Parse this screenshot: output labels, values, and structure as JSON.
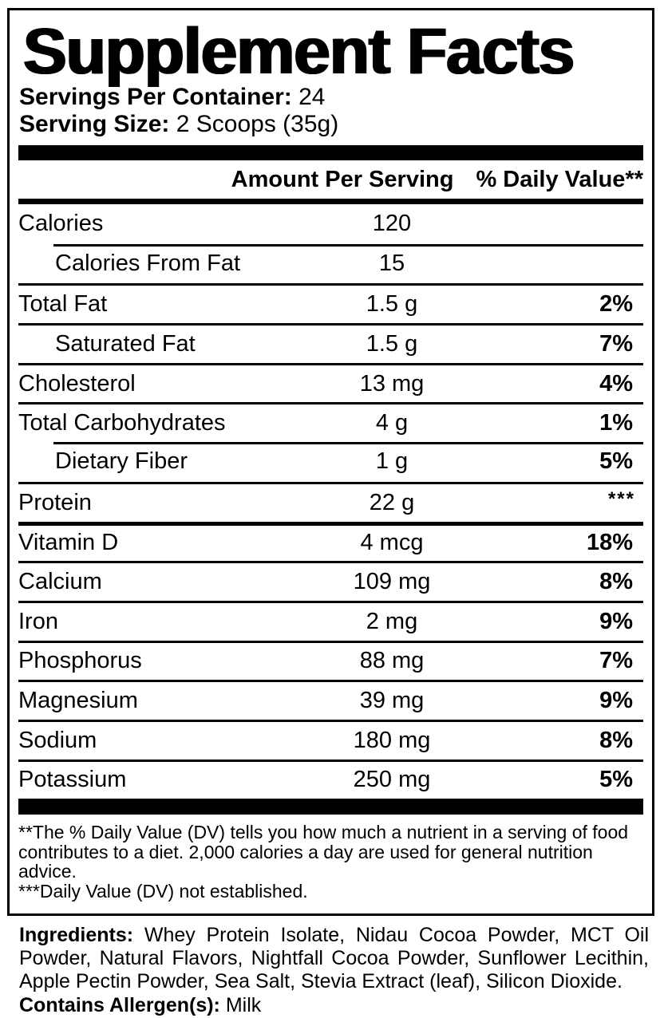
{
  "title": "Supplement Facts",
  "serving_info": {
    "servings_per_container_label": "Servings Per Container:",
    "servings_per_container_value": "24",
    "serving_size_label": "Serving Size:",
    "serving_size_value": "2 Scoops (35g)"
  },
  "table": {
    "header": {
      "amount": "Amount Per Serving",
      "daily_value": "% Daily Value**"
    },
    "rows": [
      {
        "name": "Calories",
        "amount": "120",
        "dv": ""
      },
      {
        "name": "Calories From Fat",
        "amount": "15",
        "dv": ""
      },
      {
        "name": "Total Fat",
        "amount": "1.5 g",
        "dv": "2%"
      },
      {
        "name": "Saturated Fat",
        "amount": "1.5 g",
        "dv": "7%"
      },
      {
        "name": "Cholesterol",
        "amount": "13 mg",
        "dv": "4%"
      },
      {
        "name": "Total Carbohydrates",
        "amount": "4 g",
        "dv": "1%"
      },
      {
        "name": "Dietary Fiber",
        "amount": "1 g",
        "dv": "5%"
      },
      {
        "name": "Protein",
        "amount": "22 g",
        "dv": "***"
      },
      {
        "name": "Vitamin D",
        "amount": "4 mcg",
        "dv": "18%"
      },
      {
        "name": "Calcium",
        "amount": "109 mg",
        "dv": "8%"
      },
      {
        "name": "Iron",
        "amount": "2 mg",
        "dv": "9%"
      },
      {
        "name": "Phosphorus",
        "amount": "88 mg",
        "dv": "7%"
      },
      {
        "name": "Magnesium",
        "amount": "39 mg",
        "dv": "9%"
      },
      {
        "name": "Sodium",
        "amount": "180 mg",
        "dv": "8%"
      },
      {
        "name": "Potassium",
        "amount": "250 mg",
        "dv": "5%"
      }
    ]
  },
  "footnotes": {
    "daily_value": "**The % Daily Value (DV) tells you how much a nutrient in a serving of food contributes to a diet. 2,000 calories a day are used for general nutrition advice.",
    "not_established": "***Daily Value (DV) not established."
  },
  "ingredients": {
    "label": "Ingredients:",
    "text": "Whey Protein Isolate, Nidau Cocoa Powder, MCT Oil Powder, Natural Flavors, Nightfall Cocoa Powder, Sunflower Lecithin, Apple Pectin Powder, Sea Salt, Stevia Extract (leaf), Silicon Dioxide."
  },
  "allergens": {
    "label": "Contains Allergen(s):",
    "value": "Milk"
  },
  "colors": {
    "text": "#000000",
    "background": "#ffffff"
  }
}
